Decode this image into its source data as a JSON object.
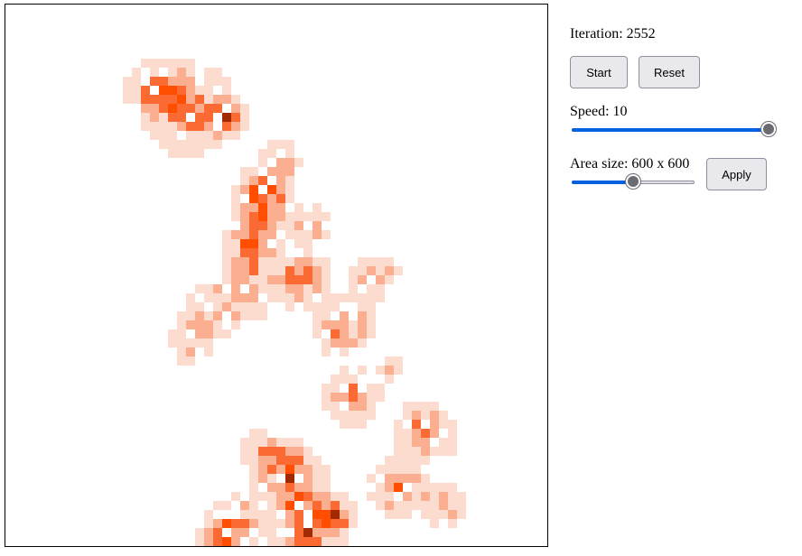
{
  "controls": {
    "iteration_label": "Iteration:",
    "iteration_value": "2552",
    "start_label": "Start",
    "reset_label": "Reset",
    "speed_label": "Speed:",
    "speed_value": "10",
    "speed_fraction": 1.0,
    "area_label": "Area size:",
    "area_value": "600 x 600",
    "area_fraction": 0.5,
    "apply_label": "Apply"
  },
  "colors": {
    "accent": "#0060df",
    "cell_levels": [
      "#ffffff",
      "#fddcd0",
      "#fcae91",
      "#fb6a33",
      "#ff4e00",
      "#a22a00",
      "#000000"
    ]
  }
}
